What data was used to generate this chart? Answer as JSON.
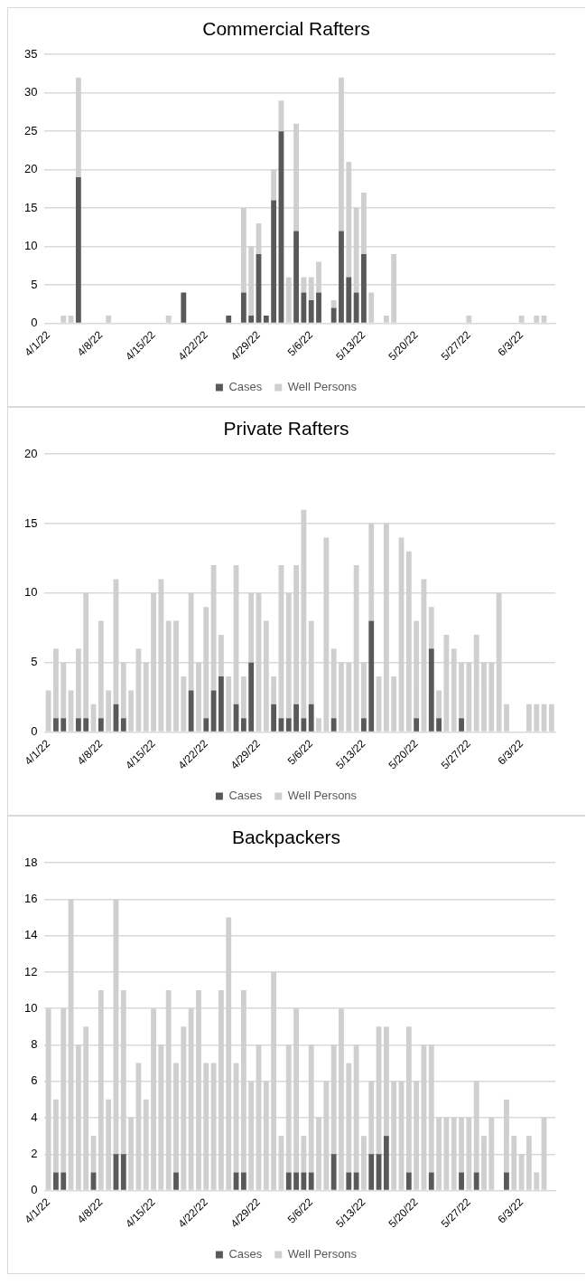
{
  "chart_data": [
    {
      "type": "bar",
      "title": "Commercial Rafters",
      "stacked": true,
      "grid": "y",
      "legend": "bottom",
      "ylim": [
        0,
        35
      ],
      "yticks": [
        0,
        5,
        10,
        15,
        20,
        25,
        30,
        35
      ],
      "categories": [
        "4/1/22",
        null,
        null,
        null,
        null,
        null,
        null,
        "4/8/22",
        null,
        null,
        null,
        null,
        null,
        null,
        "4/15/22",
        null,
        null,
        null,
        null,
        null,
        null,
        "4/22/22",
        null,
        null,
        null,
        null,
        null,
        null,
        "4/29/22",
        null,
        null,
        null,
        null,
        null,
        null,
        "5/6/22",
        null,
        null,
        null,
        null,
        null,
        null,
        "5/13/22",
        null,
        null,
        null,
        null,
        null,
        null,
        "5/20/22",
        null,
        null,
        null,
        null,
        null,
        null,
        "5/27/22",
        null,
        null,
        null,
        null,
        null,
        null,
        "6/3/22",
        null,
        null,
        null,
        null
      ],
      "series": [
        {
          "name": "Cases",
          "color": "#595959",
          "values": [
            0,
            0,
            0,
            0,
            19,
            0,
            0,
            0,
            0,
            0,
            0,
            0,
            0,
            0,
            0,
            0,
            0,
            0,
            4,
            0,
            0,
            0,
            0,
            0,
            1,
            0,
            4,
            1,
            9,
            1,
            16,
            25,
            0,
            12,
            4,
            3,
            4,
            0,
            2,
            12,
            6,
            4,
            9,
            0,
            0,
            0,
            0,
            0,
            0,
            0,
            0,
            0,
            0,
            0,
            0,
            0,
            0,
            0,
            0,
            0,
            0,
            0,
            0,
            0,
            0,
            0,
            0,
            0
          ]
        },
        {
          "name": "Well Persons",
          "color": "#d0cece",
          "values": [
            0,
            0,
            1,
            1,
            13,
            0,
            0,
            0,
            1,
            0,
            0,
            0,
            0,
            0,
            0,
            0,
            1,
            0,
            0,
            0,
            0,
            0,
            0,
            0,
            0,
            0,
            11,
            9,
            4,
            0,
            4,
            4,
            6,
            14,
            2,
            3,
            4,
            0,
            1,
            20,
            15,
            11,
            8,
            4,
            0,
            1,
            9,
            0,
            0,
            0,
            0,
            0,
            0,
            0,
            0,
            0,
            1,
            0,
            0,
            0,
            0,
            0,
            0,
            1,
            0,
            1,
            1,
            0
          ]
        }
      ]
    },
    {
      "type": "bar",
      "title": "Private Rafters",
      "stacked": true,
      "grid": "y",
      "legend": "bottom",
      "ylim": [
        0,
        20
      ],
      "yticks": [
        0,
        5,
        10,
        15,
        20
      ],
      "categories": [
        "4/1/22",
        null,
        null,
        null,
        null,
        null,
        null,
        "4/8/22",
        null,
        null,
        null,
        null,
        null,
        null,
        "4/15/22",
        null,
        null,
        null,
        null,
        null,
        null,
        "4/22/22",
        null,
        null,
        null,
        null,
        null,
        null,
        "4/29/22",
        null,
        null,
        null,
        null,
        null,
        null,
        "5/6/22",
        null,
        null,
        null,
        null,
        null,
        null,
        "5/13/22",
        null,
        null,
        null,
        null,
        null,
        null,
        "5/20/22",
        null,
        null,
        null,
        null,
        null,
        null,
        "5/27/22",
        null,
        null,
        null,
        null,
        null,
        null,
        "6/3/22",
        null,
        null,
        null,
        null
      ],
      "series": [
        {
          "name": "Cases",
          "color": "#595959",
          "values": [
            0,
            1,
            1,
            0,
            1,
            1,
            0,
            1,
            0,
            2,
            1,
            0,
            0,
            0,
            0,
            0,
            0,
            0,
            0,
            3,
            0,
            1,
            3,
            4,
            0,
            2,
            1,
            5,
            0,
            0,
            2,
            1,
            1,
            2,
            1,
            2,
            0,
            0,
            1,
            0,
            0,
            0,
            1,
            8,
            0,
            0,
            0,
            0,
            0,
            1,
            0,
            6,
            1,
            0,
            0,
            1,
            0,
            0,
            0,
            0,
            0,
            0,
            0,
            0,
            0,
            0,
            0,
            0
          ]
        },
        {
          "name": "Well Persons",
          "color": "#d0cece",
          "values": [
            3,
            5,
            4,
            3,
            5,
            9,
            2,
            7,
            3,
            9,
            4,
            3,
            6,
            5,
            10,
            11,
            8,
            8,
            4,
            7,
            5,
            8,
            9,
            3,
            4,
            10,
            3,
            5,
            10,
            8,
            2,
            11,
            9,
            10,
            15,
            6,
            1,
            14,
            5,
            5,
            5,
            12,
            4,
            7,
            4,
            15,
            4,
            14,
            13,
            7,
            11,
            3,
            2,
            7,
            6,
            4,
            5,
            7,
            5,
            5,
            10,
            2,
            0,
            0,
            2,
            2,
            2,
            2
          ]
        }
      ]
    },
    {
      "type": "bar",
      "title": "Backpackers",
      "stacked": true,
      "grid": "y",
      "legend": "bottom",
      "ylim": [
        0,
        18
      ],
      "yticks": [
        0,
        2,
        4,
        6,
        8,
        10,
        12,
        14,
        16,
        18
      ],
      "categories": [
        "4/1/22",
        null,
        null,
        null,
        null,
        null,
        null,
        "4/8/22",
        null,
        null,
        null,
        null,
        null,
        null,
        "4/15/22",
        null,
        null,
        null,
        null,
        null,
        null,
        "4/22/22",
        null,
        null,
        null,
        null,
        null,
        null,
        "4/29/22",
        null,
        null,
        null,
        null,
        null,
        null,
        "5/6/22",
        null,
        null,
        null,
        null,
        null,
        null,
        "5/13/22",
        null,
        null,
        null,
        null,
        null,
        null,
        "5/20/22",
        null,
        null,
        null,
        null,
        null,
        null,
        "5/27/22",
        null,
        null,
        null,
        null,
        null,
        null,
        "6/3/22",
        null,
        null,
        null,
        null
      ],
      "series": [
        {
          "name": "Cases",
          "color": "#595959",
          "values": [
            0,
            1,
            1,
            0,
            0,
            0,
            1,
            0,
            0,
            2,
            2,
            0,
            0,
            0,
            0,
            0,
            0,
            1,
            0,
            0,
            0,
            0,
            0,
            0,
            0,
            1,
            1,
            0,
            0,
            0,
            0,
            0,
            1,
            1,
            1,
            1,
            0,
            0,
            2,
            0,
            1,
            1,
            0,
            2,
            2,
            3,
            0,
            0,
            1,
            0,
            0,
            1,
            0,
            0,
            0,
            1,
            0,
            1,
            0,
            0,
            0,
            1,
            0,
            0,
            0,
            0,
            0,
            0
          ]
        },
        {
          "name": "Well Persons",
          "color": "#d0cece",
          "values": [
            10,
            4,
            9,
            16,
            8,
            9,
            2,
            11,
            5,
            14,
            9,
            4,
            7,
            5,
            10,
            8,
            11,
            6,
            9,
            10,
            11,
            7,
            7,
            11,
            15,
            6,
            10,
            6,
            8,
            6,
            12,
            3,
            7,
            9,
            2,
            7,
            4,
            6,
            6,
            10,
            6,
            7,
            3,
            4,
            7,
            6,
            6,
            6,
            8,
            6,
            8,
            7,
            4,
            4,
            4,
            3,
            4,
            5,
            3,
            4,
            0,
            4,
            3,
            2,
            3,
            1,
            4,
            0
          ]
        }
      ]
    }
  ]
}
